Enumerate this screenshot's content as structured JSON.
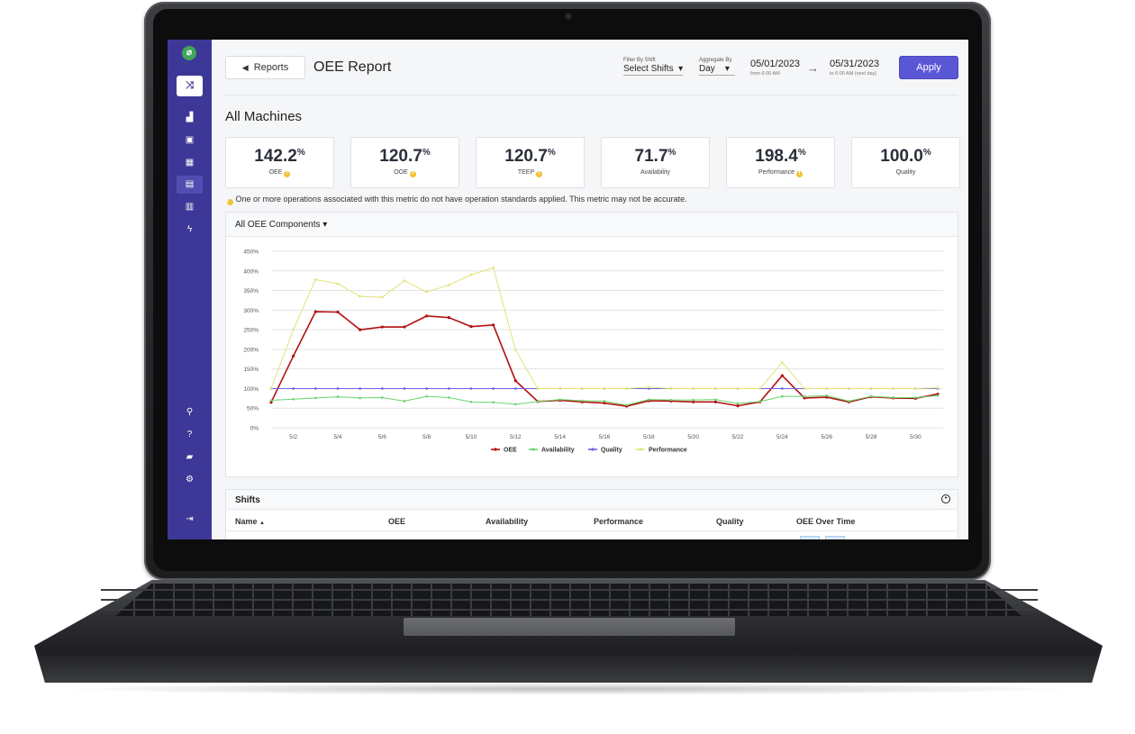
{
  "sidebar": {
    "logo_icon": "leaf-logo-icon",
    "top_icon": "shuffle-icon",
    "nav_icons": [
      "factory-icon",
      "machine-icon",
      "calendar-icon",
      "report-icon",
      "bar-chart-icon",
      "lightning-icon"
    ],
    "bottom_icons": [
      "search-icon",
      "help-icon",
      "lock-icon",
      "gear-icon",
      "logout-icon"
    ]
  },
  "header": {
    "back_label": "Reports",
    "title": "OEE Report",
    "filter_shift": {
      "label": "Filter By Shift",
      "value": "Select Shifts"
    },
    "aggregate": {
      "label": "Aggregate By",
      "value": "Day"
    },
    "start_date": {
      "value": "05/01/2023",
      "sub": "from 6:00 AM"
    },
    "end_date": {
      "value": "05/31/2023",
      "sub": "to 6:00 AM (next day)"
    },
    "apply_label": "Apply"
  },
  "section_title": "All Machines",
  "kpis": [
    {
      "value": "142.2",
      "unit": "%",
      "label": "OEE",
      "warning": true
    },
    {
      "value": "120.7",
      "unit": "%",
      "label": "OOE",
      "warning": true
    },
    {
      "value": "120.7",
      "unit": "%",
      "label": "TEEP",
      "warning": true
    },
    {
      "value": "71.7",
      "unit": "%",
      "label": "Availability",
      "warning": false
    },
    {
      "value": "198.4",
      "unit": "%",
      "label": "Performance",
      "warning": true
    },
    {
      "value": "100.0",
      "unit": "%",
      "label": "Quality",
      "warning": false
    }
  ],
  "warning_text": "One or more operations associated with this metric do not have operation standards applied. This metric may not be accurate.",
  "chart_panel": {
    "dropdown_label": "All OEE Components"
  },
  "chart_data": {
    "type": "line",
    "x": [
      1,
      2,
      3,
      4,
      5,
      6,
      7,
      8,
      9,
      10,
      11,
      12,
      13,
      14,
      15,
      16,
      17,
      18,
      19,
      20,
      21,
      22,
      23,
      24,
      25,
      26,
      27,
      28,
      29,
      30,
      31
    ],
    "xticks": [
      "5/2",
      "5/4",
      "5/6",
      "5/8",
      "5/10",
      "5/12",
      "5/14",
      "5/16",
      "5/18",
      "5/20",
      "5/22",
      "5/24",
      "5/26",
      "5/28",
      "5/30"
    ],
    "xtick_values": [
      2,
      4,
      6,
      8,
      10,
      12,
      14,
      16,
      18,
      20,
      22,
      24,
      26,
      28,
      30
    ],
    "ylim": [
      0,
      450
    ],
    "yticks": [
      "0%",
      "50%",
      "100%",
      "150%",
      "200%",
      "250%",
      "300%",
      "350%",
      "400%",
      "450%"
    ],
    "ytick_values": [
      0,
      50,
      100,
      150,
      200,
      250,
      300,
      350,
      400,
      450
    ],
    "grid": true,
    "legend_position": "bottom",
    "series": [
      {
        "name": "OEE",
        "color": "#b30f0f",
        "values": [
          65,
          183,
          296,
          295,
          250,
          257,
          257,
          285,
          281,
          258,
          262,
          120,
          67,
          70,
          66,
          63,
          55,
          69,
          68,
          66,
          66,
          56,
          66,
          133,
          76,
          78,
          66,
          79,
          76,
          75,
          86
        ]
      },
      {
        "name": "Availability",
        "color": "#6ad46a",
        "values": [
          70,
          73,
          76,
          79,
          76,
          77,
          68,
          80,
          77,
          66,
          65,
          60,
          67,
          72,
          69,
          68,
          58,
          72,
          71,
          71,
          72,
          62,
          67,
          80,
          80,
          82,
          68,
          80,
          77,
          77,
          82
        ]
      },
      {
        "name": "Quality",
        "color": "#6b63e0",
        "values": [
          100,
          100,
          100,
          100,
          100,
          100,
          100,
          100,
          100,
          100,
          100,
          100,
          100,
          100,
          100,
          100,
          100,
          100,
          100,
          100,
          100,
          100,
          100,
          100,
          100,
          100,
          100,
          100,
          100,
          100,
          100
        ]
      },
      {
        "name": "Performance",
        "color": "#e4e27a",
        "values": [
          100,
          250,
          378,
          367,
          335,
          333,
          375,
          346,
          364,
          390,
          408,
          198,
          100,
          100,
          100,
          100,
          100,
          104,
          100,
          100,
          100,
          100,
          100,
          167,
          100,
          100,
          100,
          100,
          100,
          100,
          102
        ]
      }
    ]
  },
  "shifts": {
    "title": "Shifts",
    "columns": [
      "Name",
      "OEE",
      "Availability",
      "Performance",
      "Quality",
      "OEE Over Time"
    ],
    "sort_indicator": "▲"
  }
}
